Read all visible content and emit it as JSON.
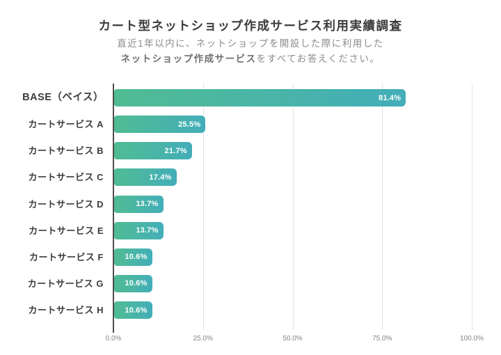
{
  "chart_data": {
    "type": "bar",
    "orientation": "horizontal",
    "title": "カート型ネットショップ作成サービス利用実績調査",
    "subtitle": {
      "line1": "直近1年以内に、ネットショップを開設した際に利用した",
      "line2_emphasis": "ネットショップ作成サービス",
      "line2_rest": "をすべてお答えください。"
    },
    "categories": [
      "BASE（ベイス）",
      "カートサービス A",
      "カートサービス B",
      "カートサービス C",
      "カートサービス D",
      "カートサービス E",
      "カートサービス F",
      "カートサービス G",
      "カートサービス H"
    ],
    "values": [
      81.4,
      25.5,
      21.7,
      17.4,
      13.7,
      13.7,
      10.6,
      10.6,
      10.6
    ],
    "value_labels": [
      "81.4%",
      "25.5%",
      "21.7%",
      "17.4%",
      "13.7%",
      "13.7%",
      "10.6%",
      "10.6%",
      "10.6%"
    ],
    "x_ticks": [
      "0.0%",
      "25.0%",
      "50.0%",
      "75.0%",
      "100.0%"
    ],
    "x_tick_values": [
      0,
      25,
      50,
      75,
      100
    ],
    "xlim": [
      0,
      100
    ],
    "grid": true,
    "legend": "none",
    "colors": {
      "bar_gradient_start": "#50BC93",
      "bar_gradient_end": "#43AEB9",
      "value_label": "#ffffff",
      "title": "#3b3b3b",
      "subtitle": "#8b8b8b",
      "category_label": "#3b3b3b",
      "axis_line": "#4d4d4d",
      "gridline": "#e2e2e2",
      "tick_label": "#848484"
    }
  }
}
